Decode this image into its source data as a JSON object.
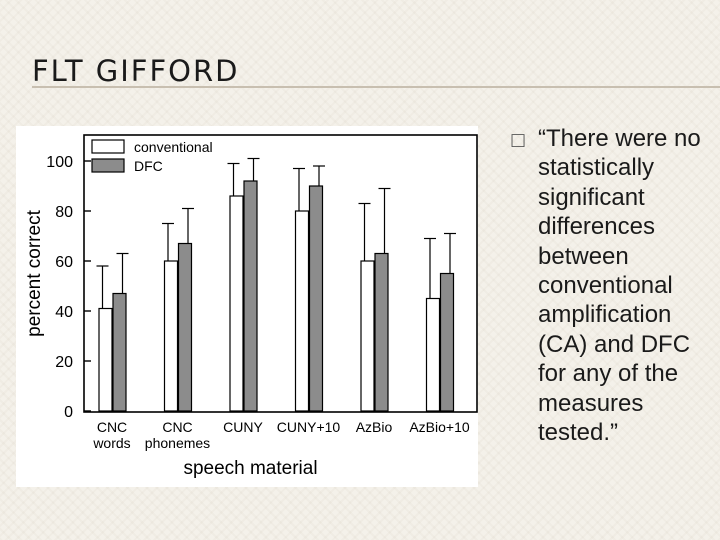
{
  "slide": {
    "title": "FLT GIFFORD",
    "bullet_icon": "box-bullet-icon",
    "bullet_text": "“There were no statistically significant differences between conventional amplification (CA) and DFC for any of the measures tested.”"
  },
  "chart_data": {
    "type": "bar",
    "title": "",
    "xlabel": "speech material",
    "ylabel": "percent correct",
    "ylim": [
      0,
      100
    ],
    "yticks": [
      0,
      20,
      40,
      60,
      80,
      100
    ],
    "grid": false,
    "legend_position": "top-left",
    "error_bars": true,
    "categories": [
      [
        "CNC",
        "words"
      ],
      [
        "CNC",
        "phonemes"
      ],
      [
        "CUNY"
      ],
      [
        "CUNY+10"
      ],
      [
        "AzBio"
      ],
      [
        "AzBio+10"
      ]
    ],
    "series": [
      {
        "name": "conventional",
        "color": "#ffffff",
        "values": [
          41,
          60,
          86,
          80,
          60,
          45
        ],
        "error_upper": [
          58,
          75,
          99,
          97,
          83,
          69
        ]
      },
      {
        "name": "DFC",
        "color": "#8c8c8c",
        "values": [
          47,
          67,
          92,
          90,
          63,
          55
        ],
        "error_upper": [
          63,
          81,
          101,
          98,
          89,
          71
        ]
      }
    ]
  }
}
